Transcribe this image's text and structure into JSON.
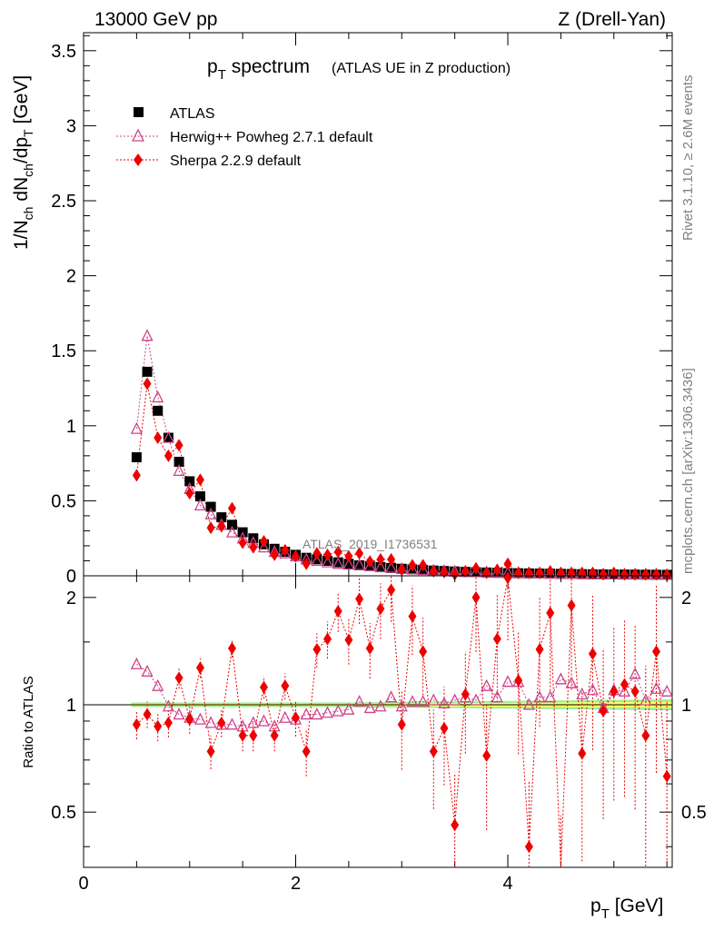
{
  "header": {
    "left": "13000 GeV pp",
    "right": "Z (Drell-Yan)"
  },
  "side_labels": {
    "rivet": "Rivet 3.1.10, ≥ 2.6M events",
    "mcplots": "mcplots.cern.ch [arXiv:1306.3436]"
  },
  "colors": {
    "atlas": "#000000",
    "herwig": "#cc4488",
    "sherpa": "#ee0000",
    "band_inner": "#ffff66",
    "band_outer": "#99ee99"
  },
  "chart_data": [
    {
      "type": "scatter",
      "title_main": "p",
      "title_sub": "T",
      "title_rest": " spectrum",
      "title_note": "(ATLAS UE in Z production)",
      "analysis_label": "ATLAS_2019_I1736531",
      "ylabel": "1/N_ch dN_ch/dp_T [GeV]",
      "xlim": [
        0,
        5.55
      ],
      "ylim": [
        0,
        3.62
      ],
      "yticks": [
        0,
        0.5,
        1,
        1.5,
        2,
        2.5,
        3,
        3.5
      ],
      "ytick_labels": [
        "0",
        "0.5",
        "1",
        "1.5",
        "2",
        "2.5",
        "3",
        "3.5"
      ],
      "x": [
        0.5,
        0.6,
        0.7,
        0.8,
        0.9,
        1.0,
        1.1,
        1.2,
        1.3,
        1.4,
        1.5,
        1.6,
        1.7,
        1.8,
        1.9,
        2.0,
        2.1,
        2.2,
        2.3,
        2.4,
        2.5,
        2.6,
        2.7,
        2.8,
        2.9,
        3.0,
        3.1,
        3.2,
        3.3,
        3.4,
        3.5,
        3.6,
        3.7,
        3.8,
        3.9,
        4.0,
        4.1,
        4.2,
        4.3,
        4.4,
        4.5,
        4.6,
        4.7,
        4.8,
        4.9,
        5.0,
        5.1,
        5.2,
        5.3,
        5.4,
        5.5
      ],
      "series": [
        {
          "name": "ATLAS",
          "values": [
            0.79,
            1.36,
            1.1,
            0.92,
            0.76,
            0.63,
            0.53,
            0.46,
            0.39,
            0.34,
            0.29,
            0.25,
            0.21,
            0.18,
            0.16,
            0.14,
            0.12,
            0.11,
            0.1,
            0.09,
            0.08,
            0.07,
            0.065,
            0.058,
            0.052,
            0.047,
            0.043,
            0.039,
            0.035,
            0.032,
            0.029,
            0.026,
            0.024,
            0.022,
            0.02,
            0.018,
            0.017,
            0.016,
            0.015,
            0.014,
            0.013,
            0.012,
            0.011,
            0.01,
            0.0095,
            0.009,
            0.0085,
            0.008,
            0.0075,
            0.007,
            0.0065
          ]
        },
        {
          "name": "Herwig++ Powheg 2.7.1 default",
          "values": [
            0.98,
            1.6,
            1.19,
            0.92,
            0.7,
            0.58,
            0.47,
            0.41,
            0.34,
            0.29,
            0.25,
            0.22,
            0.19,
            0.16,
            0.15,
            0.13,
            0.11,
            0.1,
            0.09,
            0.08,
            0.075,
            0.072,
            0.065,
            0.058,
            0.054,
            0.047,
            0.044,
            0.04,
            0.036,
            0.033,
            0.03,
            0.027,
            0.025,
            0.025,
            0.023,
            0.021,
            0.02,
            0.018,
            0.016,
            0.015,
            0.016,
            0.014,
            0.012,
            0.011,
            0.01,
            0.0098,
            0.0094,
            0.0098,
            0.0095,
            0.0095,
            0.0071
          ]
        },
        {
          "name": "Sherpa 2.2.9 default",
          "values": [
            0.67,
            1.28,
            0.92,
            0.8,
            0.87,
            0.55,
            0.64,
            0.32,
            0.33,
            0.45,
            0.22,
            0.19,
            0.23,
            0.14,
            0.17,
            0.13,
            0.08,
            0.15,
            0.14,
            0.16,
            0.13,
            0.15,
            0.095,
            0.11,
            0.11,
            0.04,
            0.07,
            0.07,
            0.03,
            0.025,
            0.01,
            0.03,
            0.05,
            0.02,
            0.04,
            0.08,
            0.02,
            0.02,
            0.02,
            0.03,
            0.02,
            0.02,
            0.02,
            0.02,
            0.01,
            0.02,
            0.01,
            0.01,
            0.01,
            0.01,
            0.005
          ]
        }
      ]
    },
    {
      "type": "scatter",
      "ylabel": "Ratio to ATLAS",
      "xlabel_main": "p",
      "xlabel_sub": "T",
      "xlabel_rest": " [GeV]",
      "xlim": [
        0,
        5.55
      ],
      "ylim": [
        0.35,
        2.3
      ],
      "xticks": [
        0,
        2,
        4
      ],
      "xtick_labels": [
        "0",
        "2",
        "4"
      ],
      "yticks": [
        0.5,
        1,
        2
      ],
      "ytick_labels": [
        "0.5",
        "1",
        "2"
      ],
      "reference_line": 1,
      "series": [
        {
          "name": "Herwig++ Powheg 2.7.1 default",
          "values": [
            1.3,
            1.24,
            1.13,
            0.99,
            0.94,
            0.92,
            0.91,
            0.89,
            0.88,
            0.88,
            0.87,
            0.89,
            0.9,
            0.87,
            0.92,
            0.91,
            0.94,
            0.94,
            0.95,
            0.96,
            0.97,
            1.02,
            0.98,
            0.99,
            1.05,
            0.99,
            1.02,
            1.02,
            1.03,
            1.01,
            1.03,
            1.05,
            1.03,
            1.13,
            1.05,
            1.16,
            1.16,
            1.0,
            1.05,
            1.05,
            1.18,
            1.15,
            1.07,
            1.1,
            0.98,
            1.1,
            1.09,
            1.22,
            1.03,
            1.11,
            1.09
          ]
        },
        {
          "name": "Sherpa 2.2.9 default",
          "values": [
            0.88,
            0.94,
            0.87,
            0.89,
            1.19,
            0.91,
            1.27,
            0.74,
            0.89,
            1.44,
            0.82,
            0.82,
            1.12,
            0.82,
            1.13,
            0.92,
            0.74,
            1.43,
            1.53,
            1.83,
            1.52,
            1.98,
            1.44,
            1.86,
            2.1,
            0.88,
            1.77,
            1.41,
            0.74,
            0.86,
            0.46,
            1.07,
            2.0,
            0.72,
            1.53,
            2.27,
            1.17,
            0.4,
            1.43,
            1.81,
            0.3,
            1.9,
            0.73,
            1.39,
            0.96,
            1.09,
            1.14,
            1.09,
            0.82,
            1.41,
            0.63
          ]
        }
      ]
    }
  ]
}
